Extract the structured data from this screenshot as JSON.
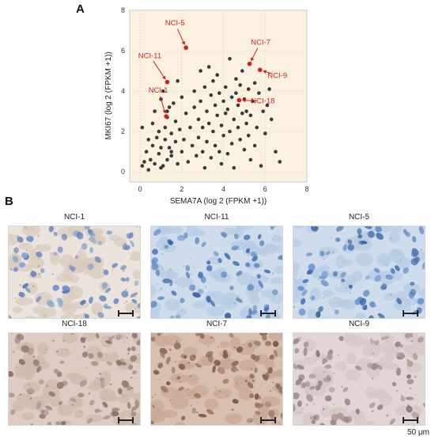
{
  "figure": {
    "panel_a_label": "A",
    "panel_b_label": "B",
    "scale_label": "50 μm"
  },
  "panels": [
    {
      "title": "NCI-1",
      "stain": "light"
    },
    {
      "title": "NCI-11",
      "stain": "blue"
    },
    {
      "title": "NCI-5",
      "stain": "blue"
    },
    {
      "title": "NCI-18",
      "stain": "brown"
    },
    {
      "title": "NCI-7",
      "stain": "brown-strong"
    },
    {
      "title": "NCI-9",
      "stain": "brown-light"
    }
  ],
  "colors": {
    "plot_background": "#faf1e1",
    "point": "#3a3a3a",
    "highlight": "#d11f1f",
    "hematoxylin": "#4f7fbf",
    "dab": "#8a6a4a"
  },
  "chart_data": {
    "type": "scatter",
    "xlabel": "SEMA7A (log 2 (FPKM +1))",
    "ylabel": "MKI67 (log 2 (FPKM +1))",
    "xlim": [
      -0.5,
      8
    ],
    "ylim": [
      -0.5,
      8
    ],
    "xticks": [
      0,
      2,
      4,
      6,
      8
    ],
    "yticks": [
      0,
      2,
      4,
      6,
      8
    ],
    "grid": true,
    "points": [
      [
        0.1,
        2.2
      ],
      [
        0.1,
        0.3
      ],
      [
        0.2,
        0.5
      ],
      [
        0.3,
        1.0
      ],
      [
        0.4,
        0.1
      ],
      [
        0.5,
        0.6
      ],
      [
        0.6,
        1.3
      ],
      [
        0.6,
        2.4
      ],
      [
        0.7,
        3.0
      ],
      [
        0.7,
        0.4
      ],
      [
        0.8,
        1.7
      ],
      [
        0.9,
        2.0
      ],
      [
        0.9,
        0.9
      ],
      [
        1.0,
        3.6
      ],
      [
        1.0,
        1.2
      ],
      [
        1.0,
        0.2
      ],
      [
        1.1,
        0.3
      ],
      [
        1.1,
        4.0
      ],
      [
        1.2,
        2.2
      ],
      [
        1.2,
        1.6
      ],
      [
        1.3,
        3.0
      ],
      [
        1.3,
        0.6
      ],
      [
        1.3,
        2.7
      ],
      [
        1.4,
        1.2
      ],
      [
        1.4,
        3.2
      ],
      [
        1.5,
        0.8
      ],
      [
        1.5,
        1.9
      ],
      [
        1.6,
        3.4
      ],
      [
        1.7,
        2.5
      ],
      [
        1.7,
        1.5
      ],
      [
        1.8,
        4.5
      ],
      [
        1.8,
        0.4
      ],
      [
        1.9,
        2.1
      ],
      [
        2.0,
        1.0
      ],
      [
        2.0,
        3.7
      ],
      [
        2.1,
        1.6
      ],
      [
        2.2,
        2.9
      ],
      [
        2.3,
        0.5
      ],
      [
        2.4,
        2.2
      ],
      [
        2.5,
        1.3
      ],
      [
        2.6,
        3.2
      ],
      [
        2.6,
        4.0
      ],
      [
        2.7,
        0.8
      ],
      [
        2.8,
        2.6
      ],
      [
        2.8,
        1.7
      ],
      [
        2.9,
        3.5
      ],
      [
        3.0,
        1.0
      ],
      [
        3.0,
        2.2
      ],
      [
        3.1,
        4.2
      ],
      [
        3.1,
        0.2
      ],
      [
        3.2,
        3.0
      ],
      [
        3.2,
        1.5
      ],
      [
        3.3,
        2.4
      ],
      [
        3.4,
        3.8
      ],
      [
        3.4,
        0.7
      ],
      [
        3.5,
        2.0
      ],
      [
        3.5,
        4.5
      ],
      [
        3.6,
        1.3
      ],
      [
        3.6,
        3.3
      ],
      [
        3.7,
        2.8
      ],
      [
        3.7,
        4.8
      ],
      [
        3.8,
        1.0
      ],
      [
        3.8,
        3.9
      ],
      [
        3.9,
        2.3
      ],
      [
        3.9,
        0.4
      ],
      [
        4.0,
        3.5
      ],
      [
        4.0,
        1.8
      ],
      [
        4.1,
        4.2
      ],
      [
        4.1,
        2.9
      ],
      [
        4.2,
        0.9
      ],
      [
        4.2,
        3.1
      ],
      [
        4.3,
        5.6
      ],
      [
        4.3,
        2.0
      ],
      [
        4.4,
        3.7
      ],
      [
        4.4,
        1.4
      ],
      [
        4.5,
        2.6
      ],
      [
        4.5,
        0.2
      ],
      [
        4.6,
        4.6
      ],
      [
        4.6,
        3.9
      ],
      [
        4.7,
        2.2
      ],
      [
        4.7,
        3.3
      ],
      [
        4.8,
        1.6
      ],
      [
        4.8,
        4.3
      ],
      [
        4.9,
        2.9
      ],
      [
        4.9,
        5.0
      ],
      [
        5.0,
        3.6
      ],
      [
        5.0,
        1.1
      ],
      [
        5.1,
        2.4
      ],
      [
        5.1,
        3.0
      ],
      [
        5.2,
        4.1
      ],
      [
        5.2,
        1.8
      ],
      [
        5.3,
        2.8
      ],
      [
        5.3,
        0.6
      ],
      [
        5.4,
        3.5
      ],
      [
        5.5,
        4.4
      ],
      [
        5.5,
        1.3
      ],
      [
        5.6,
        2.2
      ],
      [
        5.7,
        3.9
      ],
      [
        5.8,
        0.3
      ],
      [
        5.9,
        3.0
      ],
      [
        6.0,
        1.9
      ],
      [
        6.1,
        3.3
      ],
      [
        6.2,
        4.1
      ],
      [
        6.3,
        2.6
      ],
      [
        6.5,
        1.0
      ],
      [
        6.7,
        0.5
      ],
      [
        3.3,
        5.2
      ],
      [
        2.9,
        5.0
      ],
      [
        1.5,
        1.0
      ],
      [
        0.4,
        1.6
      ]
    ],
    "highlighted": [
      {
        "label": "NCI-5",
        "x": 2.2,
        "y": 6.15
      },
      {
        "label": "NCI-11",
        "x": 1.3,
        "y": 4.45
      },
      {
        "label": "NCI-1",
        "x": 1.25,
        "y": 2.75
      },
      {
        "label": "NCI-7",
        "x": 5.25,
        "y": 5.35
      },
      {
        "label": "NCI-9",
        "x": 5.75,
        "y": 5.05
      },
      {
        "label": "NCI-18",
        "x": 4.75,
        "y": 3.55
      }
    ]
  }
}
